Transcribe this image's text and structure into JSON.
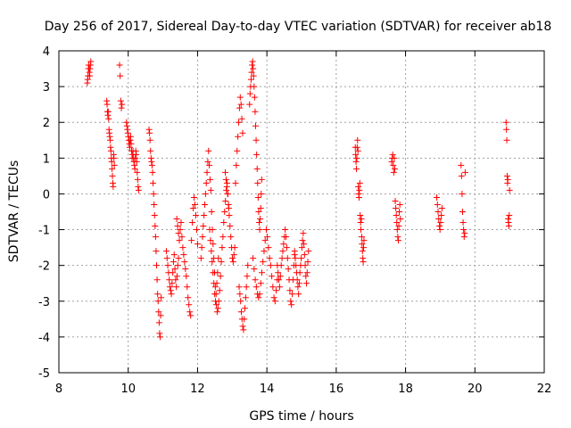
{
  "chart_data": {
    "type": "scatter",
    "title": "Day 256 of 2017, Sidereal Day-to-day VTEC variation (SDTVAR) for receiver ab18",
    "xlabel": "GPS time / hours",
    "ylabel": "SDTVAR / TECUs",
    "xlim": [
      8,
      22
    ],
    "ylim": [
      -5,
      4
    ],
    "xticks": [
      8,
      10,
      12,
      14,
      16,
      18,
      20,
      22
    ],
    "yticks": [
      -5,
      -4,
      -3,
      -2,
      -1,
      0,
      1,
      2,
      3,
      4
    ],
    "grid": true,
    "marker": "plus",
    "color": "#ff0000",
    "series": [
      {
        "name": "SDTVAR",
        "segments": [
          {
            "x0": 8.82,
            "x1": 8.92,
            "y": [
              3.1,
              3.2,
              3.3,
              3.5,
              3.6,
              3.5,
              3.4,
              3.3,
              3.5,
              3.6,
              3.7
            ]
          },
          {
            "x0": 9.75,
            "x1": 9.82,
            "y": [
              3.6,
              3.3,
              2.6,
              2.4,
              2.5
            ]
          },
          {
            "x0": 9.38,
            "x1": 9.6,
            "y": [
              2.6,
              2.5,
              2.3,
              2.2,
              2.3,
              2.1,
              1.8,
              1.7,
              1.6,
              1.5,
              1.3,
              1.2,
              1.0,
              0.9,
              0.7,
              0.5,
              0.3,
              0.2,
              1.1,
              1.0,
              0.8
            ]
          },
          {
            "x0": 9.95,
            "x1": 10.3,
            "y": [
              2.0,
              1.9,
              1.8,
              1.7,
              1.6,
              1.5,
              1.4,
              1.3,
              1.5,
              1.6,
              1.4,
              1.2,
              1.0,
              1.1,
              1.2,
              1.0,
              0.9,
              0.8,
              0.7,
              1.0,
              1.2,
              1.1,
              0.9,
              0.6,
              0.4,
              0.2,
              0.1
            ]
          },
          {
            "x0": 10.6,
            "x1": 10.95,
            "y": [
              1.8,
              1.7,
              1.5,
              1.2,
              1.0,
              0.9,
              0.8,
              0.6,
              0.3,
              0.0,
              -0.3,
              -0.6,
              -0.9,
              -1.2,
              -1.6,
              -2.0,
              -2.4,
              -2.8,
              -3.0,
              -3.3,
              -3.6,
              -3.9,
              -4.0,
              -3.4,
              -2.9
            ]
          },
          {
            "x0": 11.1,
            "x1": 11.45,
            "y": [
              -1.6,
              -1.8,
              -2.0,
              -2.2,
              -2.4,
              -2.6,
              -2.7,
              -2.8,
              -2.5,
              -2.2,
              -1.9,
              -1.7,
              -2.1,
              -2.4,
              -2.6,
              -2.3,
              -2.0,
              -1.8
            ]
          },
          {
            "x0": 11.4,
            "x1": 12.0,
            "y": [
              -0.7,
              -0.9,
              -1.1,
              -1.3,
              -1.0,
              -0.8,
              -1.2,
              -1.5,
              -1.7,
              -1.9,
              -2.1,
              -2.3,
              -2.6,
              -2.9,
              -3.1,
              -3.3,
              -3.4,
              -1.3,
              -0.8,
              -0.4,
              -0.1,
              -0.3,
              -0.6,
              -1.0,
              -1.4
            ]
          },
          {
            "x0": 12.1,
            "x1": 12.6,
            "y": [
              -1.8,
              -1.5,
              -1.2,
              -0.9,
              -0.6,
              -0.3,
              0.0,
              0.3,
              0.6,
              0.9,
              1.2,
              0.8,
              0.4,
              0.1,
              -0.5,
              -1.0,
              -1.4,
              -1.8,
              -2.2,
              -2.6,
              -2.8,
              -2.5,
              -2.2,
              -1.8
            ]
          },
          {
            "x0": 12.35,
            "x1": 12.9,
            "y": [
              -1.0,
              -1.3,
              -1.6,
              -1.9,
              -2.2,
              -2.5,
              -2.8,
              -3.0,
              -3.1,
              -3.3,
              -3.2,
              -3.0,
              -2.7,
              -2.3,
              -1.9,
              -1.5,
              -1.2,
              -0.8,
              -0.5,
              -0.2,
              0.1,
              0.3,
              0.0,
              -0.4
            ]
          },
          {
            "x0": 12.8,
            "x1": 13.3,
            "y": [
              0.6,
              0.4,
              0.2,
              0.0,
              -0.3,
              -0.6,
              -0.9,
              -1.2,
              -1.5,
              -1.8,
              -1.9,
              -1.7,
              -1.5,
              0.3,
              0.8,
              1.2,
              1.6,
              2.0,
              2.4,
              2.7,
              2.5,
              2.1,
              1.7
            ]
          },
          {
            "x0": 13.2,
            "x1": 13.45,
            "y": [
              -2.6,
              -2.8,
              -3.0,
              -3.3,
              -3.5,
              -3.7,
              -3.8,
              -3.5,
              -3.2,
              -2.9,
              -2.6,
              -2.3,
              -2.0
            ]
          },
          {
            "x0": 13.5,
            "x1": 13.85,
            "y": [
              2.5,
              2.8,
              3.0,
              3.2,
              3.4,
              3.6,
              3.7,
              3.5,
              3.3,
              3.0,
              2.7,
              2.3,
              1.9,
              1.5,
              1.1,
              0.7,
              0.3,
              -0.1,
              -0.5,
              -0.8,
              -1.0,
              -0.7,
              -0.4,
              0.0,
              0.4
            ]
          },
          {
            "x0": 13.6,
            "x1": 14.3,
            "y": [
              -1.8,
              -2.1,
              -2.4,
              -2.6,
              -2.8,
              -2.9,
              -2.8,
              -2.5,
              -2.2,
              -1.9,
              -1.6,
              -1.3,
              -1.0,
              -1.2,
              -1.5,
              -1.8,
              -2.0,
              -2.3,
              -2.6,
              -2.9,
              -3.0,
              -2.7,
              -2.4
            ]
          },
          {
            "x0": 14.3,
            "x1": 14.8,
            "y": [
              -2.0,
              -2.2,
              -2.4,
              -2.6,
              -2.3,
              -2.0,
              -1.8,
              -1.6,
              -1.4,
              -1.2,
              -1.0,
              -1.2,
              -1.5,
              -1.8,
              -2.1,
              -2.4,
              -2.7,
              -3.0,
              -3.1,
              -2.8,
              -2.4,
              -2.0,
              -1.7
            ]
          },
          {
            "x0": 14.8,
            "x1": 15.2,
            "y": [
              -1.6,
              -1.8,
              -2.0,
              -2.2,
              -2.4,
              -2.6,
              -2.8,
              -2.5,
              -2.2,
              -2.0,
              -1.8,
              -1.5,
              -1.3,
              -1.1,
              -1.4,
              -1.7,
              -2.0,
              -2.3,
              -2.5,
              -2.2,
              -1.9,
              -1.6
            ]
          },
          {
            "x0": 16.55,
            "x1": 16.8,
            "y": [
              1.3,
              1.1,
              0.9,
              0.7,
              1.0,
              1.3,
              1.5,
              1.2,
              0.2,
              0.0,
              -0.1,
              0.1,
              0.3,
              -0.6,
              -0.8,
              -1.0,
              -0.7,
              -1.2,
              -1.4,
              -1.6,
              -1.8,
              -1.9,
              -1.5,
              -1.3
            ]
          },
          {
            "x0": 17.6,
            "x1": 17.85,
            "y": [
              0.9,
              1.0,
              1.1,
              0.8,
              0.6,
              1.0,
              0.7,
              -0.2,
              -0.4,
              -0.6,
              -0.8,
              -1.0,
              -1.2,
              -1.3,
              -0.9,
              -0.5,
              -0.3,
              -0.7
            ]
          },
          {
            "x0": 18.9,
            "x1": 19.05,
            "y": [
              -0.1,
              -0.3,
              -0.5,
              -0.7,
              -0.9,
              -1.0,
              -0.8,
              -0.6,
              -0.4
            ]
          },
          {
            "x0": 19.6,
            "x1": 19.72,
            "y": [
              0.8,
              0.5,
              0.0,
              -0.5,
              -0.8,
              -1.0,
              -1.2,
              -1.1,
              0.6
            ]
          },
          {
            "x0": 20.9,
            "x1": 21.0,
            "y": [
              2.0,
              1.8,
              1.5,
              0.5,
              0.3,
              0.4,
              -0.7,
              -0.8,
              -0.9,
              -0.6,
              0.1
            ]
          }
        ]
      }
    ]
  }
}
